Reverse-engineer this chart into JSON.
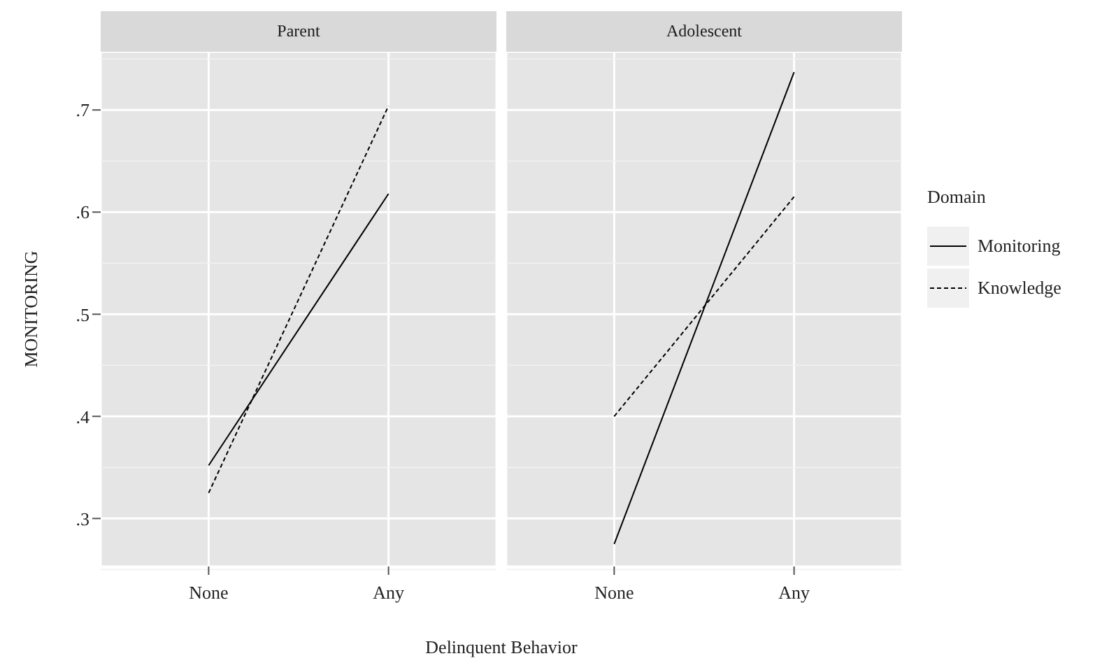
{
  "chart_data": [
    {
      "type": "line",
      "title": "Parent",
      "ylabel": "MONITORING",
      "xlabel": "Delinquent Behavior",
      "categories": [
        "None",
        "Any"
      ],
      "ylim": [
        0.253,
        0.757
      ],
      "yticks": [
        {
          "value": 0.3,
          "label": ".3"
        },
        {
          "value": 0.4,
          "label": ".4"
        },
        {
          "value": 0.5,
          "label": ".5"
        },
        {
          "value": 0.6,
          "label": ".6"
        },
        {
          "value": 0.7,
          "label": ".7"
        }
      ],
      "grid": true,
      "series": [
        {
          "color": "#000000",
          "line_style": "solid",
          "values": [
            0.352,
            0.618
          ]
        },
        {
          "color": "#000000",
          "line_style": "dashed",
          "values": [
            0.325,
            0.704
          ]
        }
      ]
    },
    {
      "type": "line",
      "title": "Adolescent",
      "categories": [
        "None",
        "Any"
      ],
      "ylim": [
        0.253,
        0.757
      ],
      "yticks": [
        0.3,
        0.4,
        0.5,
        0.6,
        0.7
      ],
      "grid": true,
      "tick_labels": "x",
      "legend": "right",
      "legend_title": "Domain",
      "series": [
        {
          "name": "Monitoring",
          "color": "#000000",
          "line_style": "solid",
          "values": [
            0.275,
            0.737
          ]
        },
        {
          "name": "Knowledge",
          "color": "#000000",
          "line_style": "dashed",
          "values": [
            0.4,
            0.615
          ]
        }
      ]
    }
  ]
}
